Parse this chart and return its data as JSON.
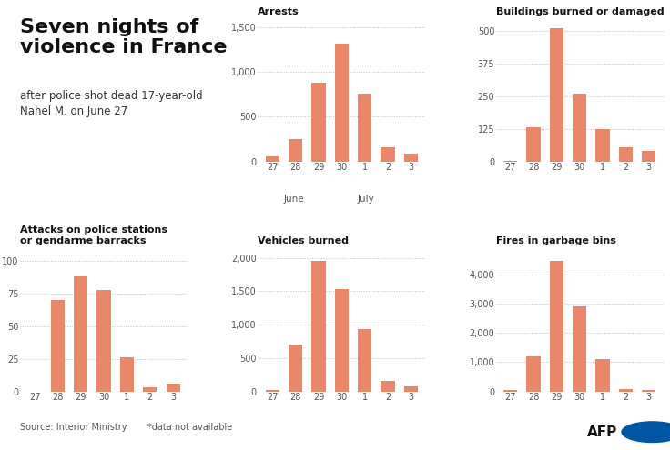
{
  "days": [
    "27",
    "28",
    "29",
    "30",
    "1",
    "2",
    "3"
  ],
  "bar_color": "#E8876A",
  "background_color": "#ffffff",
  "charts": [
    {
      "title": "Arrests",
      "values": [
        55,
        250,
        875,
        1311,
        760,
        157,
        90
      ],
      "yticks": [
        0,
        500,
        1000,
        1500
      ],
      "ylim": [
        0,
        1600
      ],
      "show_month_labels": true
    },
    {
      "title": "Buildings burned or damaged",
      "values": [
        2,
        130,
        510,
        260,
        125,
        55,
        40
      ],
      "yticks": [
        0,
        125,
        250,
        375,
        500
      ],
      "ylim": [
        0,
        550
      ],
      "show_month_labels": false
    },
    {
      "title": "Attacks on police stations\nor gendarme barracks",
      "values": [
        0,
        70,
        88,
        78,
        26,
        3,
        6
      ],
      "yticks": [
        0,
        25,
        50,
        75,
        100
      ],
      "ylim": [
        0,
        110
      ],
      "show_month_labels": false
    },
    {
      "title": "Vehicles burned",
      "values": [
        20,
        700,
        1955,
        1530,
        940,
        165,
        80
      ],
      "yticks": [
        0,
        500,
        1000,
        1500,
        2000
      ],
      "ylim": [
        0,
        2150
      ],
      "show_month_labels": false
    },
    {
      "title": "Fires in garbage bins",
      "values": [
        50,
        1200,
        4450,
        2900,
        1100,
        80,
        50
      ],
      "yticks": [
        0,
        1000,
        2000,
        3000,
        4000
      ],
      "ylim": [
        0,
        4900
      ],
      "show_month_labels": false
    }
  ],
  "main_title": "Seven nights of\nviolence in France",
  "subtitle": "after police shot dead 17-year-old\nNahel M. on June 27",
  "source": "Source: Interior Ministry",
  "note": "*data not available",
  "afp_credit": "AFP"
}
